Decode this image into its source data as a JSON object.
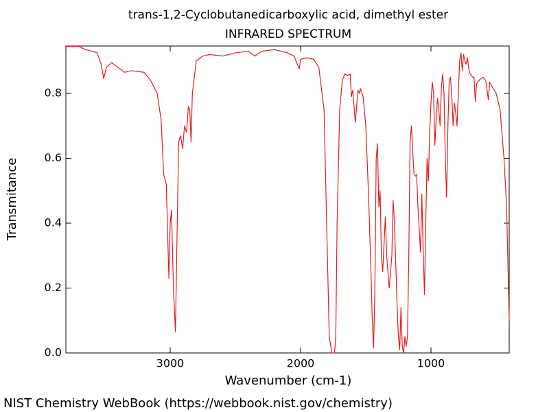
{
  "chart_data": {
    "type": "line",
    "title": "trans-1,2-Cyclobutanedicarboxylic acid, dimethyl ester",
    "subtitle": "INFRARED SPECTRUM",
    "xlabel": "Wavenumber (cm-1)",
    "ylabel": "Transmitance",
    "source": "NIST Chemistry WebBook (https://webbook.nist.gov/chemistry)",
    "color": "#e41a1c",
    "xlim": [
      3800,
      400
    ],
    "ylim": [
      0,
      0.946
    ],
    "xticks": [
      3000,
      2000,
      1000
    ],
    "yticks": [
      {
        "value": 0,
        "label": "0.0"
      },
      0.2,
      0.4,
      0.6,
      0.8
    ],
    "x": [
      3800,
      3700,
      3650,
      3600,
      3560,
      3530,
      3510,
      3490,
      3450,
      3400,
      3350,
      3300,
      3200,
      3150,
      3100,
      3070,
      3050,
      3030,
      3010,
      3000,
      2990,
      2975,
      2960,
      2950,
      2935,
      2920,
      2905,
      2890,
      2875,
      2860,
      2850,
      2840,
      2830,
      2800,
      2750,
      2700,
      2600,
      2500,
      2400,
      2350,
      2300,
      2200,
      2100,
      2050,
      2010,
      2000,
      1950,
      1900,
      1860,
      1820,
      1800,
      1780,
      1760,
      1740,
      1730,
      1720,
      1700,
      1680,
      1660,
      1640,
      1620,
      1610,
      1600,
      1580,
      1560,
      1550,
      1540,
      1520,
      1500,
      1480,
      1460,
      1450,
      1440,
      1430,
      1420,
      1410,
      1400,
      1390,
      1380,
      1370,
      1350,
      1340,
      1320,
      1300,
      1290,
      1280,
      1260,
      1250,
      1240,
      1230,
      1220,
      1210,
      1200,
      1190,
      1180,
      1170,
      1160,
      1150,
      1140,
      1130,
      1120,
      1110,
      1100,
      1080,
      1070,
      1060,
      1050,
      1040,
      1030,
      1020,
      1010,
      1000,
      990,
      980,
      970,
      960,
      950,
      940,
      930,
      920,
      910,
      900,
      890,
      880,
      870,
      860,
      850,
      840,
      830,
      820,
      810,
      800,
      790,
      780,
      770,
      760,
      750,
      740,
      730,
      720,
      710,
      700,
      690,
      680,
      670,
      660,
      650,
      620,
      600,
      580,
      560,
      550,
      530,
      500,
      470,
      440,
      420,
      400
    ],
    "values": [
      0.945,
      0.945,
      0.935,
      0.93,
      0.925,
      0.89,
      0.845,
      0.88,
      0.895,
      0.88,
      0.865,
      0.87,
      0.865,
      0.84,
      0.8,
      0.72,
      0.55,
      0.52,
      0.23,
      0.4,
      0.44,
      0.2,
      0.065,
      0.3,
      0.65,
      0.67,
      0.63,
      0.7,
      0.68,
      0.76,
      0.75,
      0.65,
      0.8,
      0.9,
      0.915,
      0.92,
      0.915,
      0.925,
      0.93,
      0.915,
      0.93,
      0.935,
      0.925,
      0.915,
      0.875,
      0.905,
      0.91,
      0.905,
      0.88,
      0.75,
      0.4,
      0.05,
      0.0,
      0.0,
      0.05,
      0.4,
      0.75,
      0.84,
      0.86,
      0.855,
      0.86,
      0.79,
      0.81,
      0.71,
      0.81,
      0.8,
      0.815,
      0.79,
      0.7,
      0.5,
      0.25,
      0.1,
      0.015,
      0.2,
      0.6,
      0.645,
      0.45,
      0.5,
      0.3,
      0.25,
      0.42,
      0.3,
      0.2,
      0.3,
      0.47,
      0.4,
      0.15,
      0.05,
      0.01,
      0.14,
      0.02,
      0.0,
      0.05,
      0.02,
      0.05,
      0.3,
      0.65,
      0.7,
      0.62,
      0.55,
      0.545,
      0.55,
      0.45,
      0.31,
      0.49,
      0.32,
      0.18,
      0.4,
      0.6,
      0.53,
      0.68,
      0.77,
      0.835,
      0.8,
      0.64,
      0.72,
      0.785,
      0.75,
      0.7,
      0.82,
      0.86,
      0.8,
      0.6,
      0.48,
      0.7,
      0.84,
      0.85,
      0.79,
      0.7,
      0.77,
      0.74,
      0.7,
      0.8,
      0.9,
      0.925,
      0.87,
      0.92,
      0.9,
      0.89,
      0.91,
      0.875,
      0.86,
      0.855,
      0.85,
      0.85,
      0.775,
      0.83,
      0.845,
      0.85,
      0.84,
      0.78,
      0.835,
      0.82,
      0.8,
      0.75,
      0.6,
      0.45,
      0.1
    ]
  }
}
